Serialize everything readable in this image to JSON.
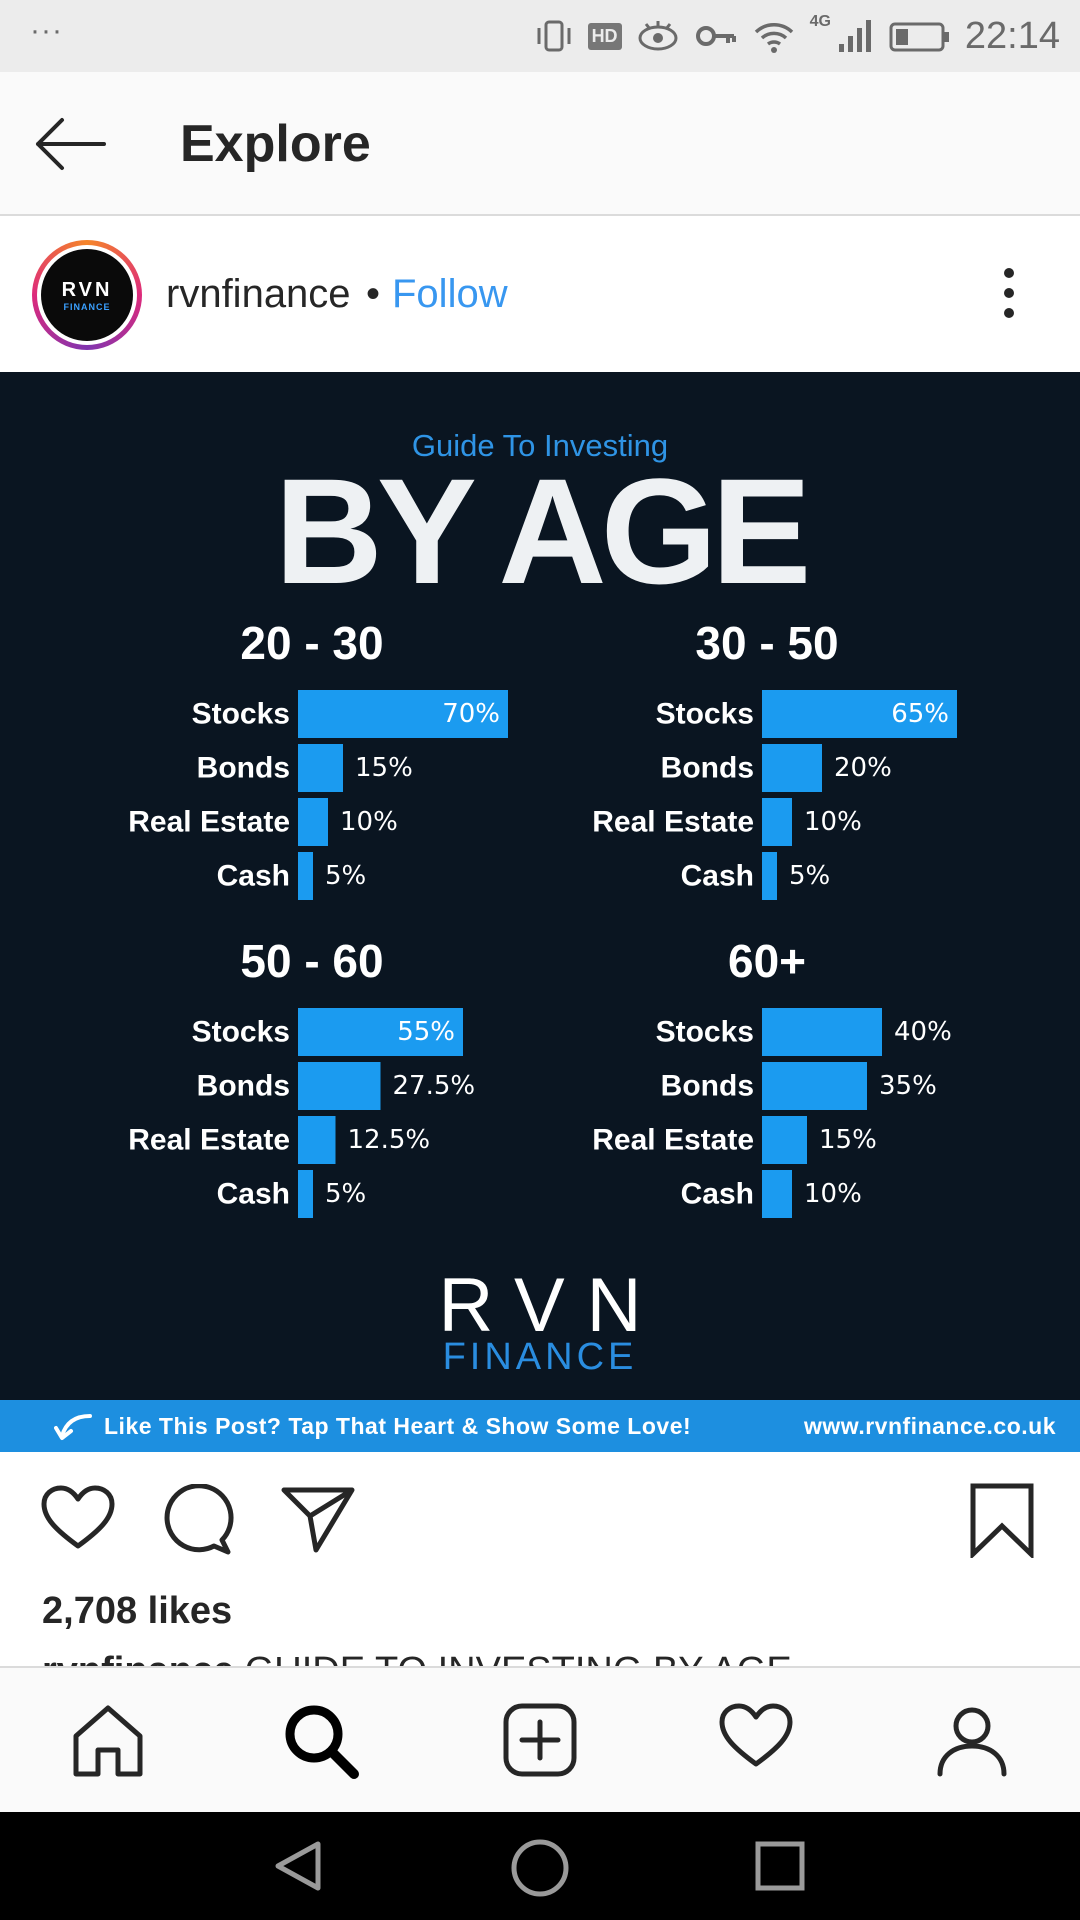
{
  "status_bar": {
    "dots": "···",
    "hd": "HD",
    "network": "4G",
    "time": "22:14"
  },
  "topbar": {
    "title": "Explore"
  },
  "post": {
    "avatar": {
      "line1": "RVN",
      "line2": "FINANCE"
    },
    "username": "rvnfinance",
    "separator": "•",
    "follow_label": "Follow",
    "likes": "2,708 likes",
    "caption_user": "rvnfinance",
    "caption_text": "GUIDE TO INVESTING BY AGE"
  },
  "infographic": {
    "subtitle": "Guide To Investing",
    "title": "BY AGE",
    "logo_line1": "RVN",
    "logo_line2": "FINANCE",
    "promo_text": "Like This Post? Tap That Heart & Show Some Love!",
    "promo_url": "www.rvnfinance.co.uk"
  },
  "chart_data": [
    {
      "type": "bar",
      "title": "20 - 30",
      "categories": [
        "Stocks",
        "Bonds",
        "Real Estate",
        "Cash"
      ],
      "values": [
        70,
        15,
        10,
        5
      ],
      "labels": [
        "70%",
        "15%",
        "10%",
        "5%"
      ],
      "unit": "%",
      "xlim": [
        0,
        70
      ],
      "color": "#1b9bf0"
    },
    {
      "type": "bar",
      "title": "30 - 50",
      "categories": [
        "Stocks",
        "Bonds",
        "Real Estate",
        "Cash"
      ],
      "values": [
        65,
        20,
        10,
        5
      ],
      "labels": [
        "65%",
        "20%",
        "10%",
        "5%"
      ],
      "unit": "%",
      "xlim": [
        0,
        70
      ],
      "color": "#1b9bf0"
    },
    {
      "type": "bar",
      "title": "50 - 60",
      "categories": [
        "Stocks",
        "Bonds",
        "Real Estate",
        "Cash"
      ],
      "values": [
        55,
        27.5,
        12.5,
        5
      ],
      "labels": [
        "55%",
        "27.5%",
        "12.5%",
        "5%"
      ],
      "unit": "%",
      "xlim": [
        0,
        70
      ],
      "color": "#1b9bf0"
    },
    {
      "type": "bar",
      "title": "60+",
      "categories": [
        "Stocks",
        "Bonds",
        "Real Estate",
        "Cash"
      ],
      "values": [
        40,
        35,
        15,
        10
      ],
      "labels": [
        "40%",
        "35%",
        "15%",
        "10%"
      ],
      "unit": "%",
      "xlim": [
        0,
        70
      ],
      "color": "#1b9bf0"
    }
  ],
  "colors": {
    "accent": "#3897f0",
    "bar": "#1b9bf0",
    "post_bg": "#0a1521",
    "promo_bg": "#1d8fe0"
  },
  "icons": {
    "back": "arrow-left-icon",
    "more": "more-vertical-icon",
    "like": "heart-icon",
    "comment": "comment-icon",
    "share": "send-icon",
    "save": "bookmark-icon",
    "home": "home-icon",
    "search": "search-icon",
    "add": "add-post-icon",
    "activity": "heart-icon",
    "profile": "profile-icon"
  }
}
